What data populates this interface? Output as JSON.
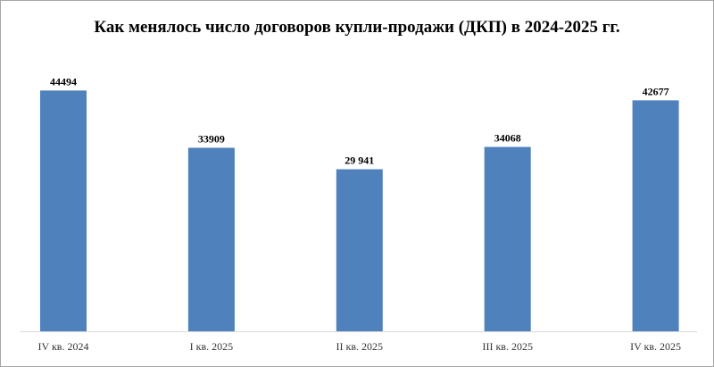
{
  "chart_data": {
    "type": "bar",
    "title": "Как менялось число договоров купли-продажи (ДКП) в 2024-2025 гг.",
    "categories": [
      "IV кв. 2024",
      "I кв. 2025",
      "II кв. 2025",
      "III кв. 2025",
      "IV кв. 2025"
    ],
    "values": [
      44494,
      33909,
      29941,
      34068,
      42677
    ],
    "data_labels": [
      "44494",
      "33909",
      "29 941",
      "34068",
      "42677"
    ],
    "xlabel": "",
    "ylabel": "",
    "ylim": [
      0,
      50000
    ],
    "grid": false,
    "legend": "none",
    "bar_color": "#4f81bd",
    "axis_color": "#d9d9d9"
  }
}
